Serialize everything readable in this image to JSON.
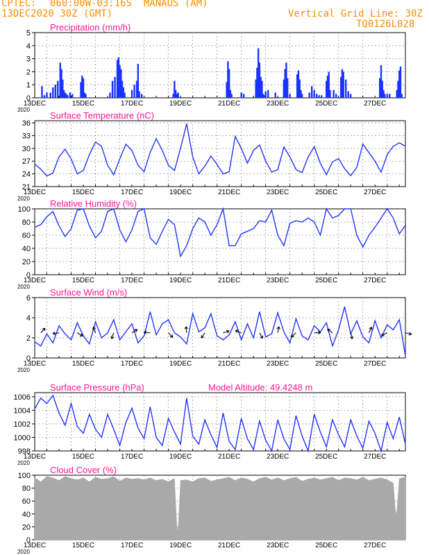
{
  "header": {
    "source": "CPTEC:",
    "location": "060:00W-03:16S  MANAUS (AM)",
    "run": "13DEC2020 30Z (GMT)",
    "grid_note": "Vertical Grid Line: 30Z",
    "code": "TQ0126L028",
    "color": "#ff8c00"
  },
  "colors": {
    "series": "#2233ff",
    "bars": "#1a33ff",
    "title": "#ff1493",
    "cloud": "#a9a9a9",
    "grid": "#999999"
  },
  "x_axis": {
    "tick_labels": [
      "13DEC",
      "15DEC",
      "17DEC",
      "19DEC",
      "21DEC",
      "23DEC",
      "25DEC",
      "27DEC"
    ],
    "tick_days": [
      0,
      2,
      4,
      6,
      8,
      10,
      12,
      14
    ],
    "year_label": "2020",
    "days_span": 15.25
  },
  "chart_data": [
    {
      "type": "bar",
      "title": "Precipitation (mm/h)",
      "ylim": [
        0,
        5
      ],
      "yticks": [
        0,
        1,
        2,
        3,
        4,
        5
      ],
      "x": [
        0.3,
        0.4,
        0.5,
        0.65,
        0.75,
        0.85,
        0.95,
        1.05,
        1.1,
        1.15,
        1.2,
        1.25,
        1.3,
        1.35,
        1.45,
        1.55,
        1.9,
        1.95,
        2.0,
        2.05,
        2.1,
        3.1,
        3.2,
        3.3,
        3.4,
        3.45,
        3.5,
        3.55,
        3.6,
        3.65,
        3.7,
        4.0,
        4.1,
        4.2,
        4.25,
        4.3,
        4.4,
        5.7,
        5.75,
        5.8,
        5.85,
        5.9,
        7.9,
        7.95,
        8.0,
        8.05,
        8.1,
        8.5,
        8.6,
        9.1,
        9.15,
        9.2,
        9.25,
        9.3,
        9.35,
        9.4,
        9.45,
        9.5,
        9.6,
        9.9,
        10.25,
        10.3,
        10.35,
        10.4,
        10.5,
        10.8,
        10.85,
        10.9,
        10.95,
        11.0,
        11.3,
        11.4,
        11.5,
        11.6,
        11.7,
        11.8,
        12.0,
        12.05,
        12.1,
        12.15,
        12.3,
        12.4,
        12.6,
        12.65,
        12.7,
        12.8,
        12.9,
        13.0,
        14.2,
        14.25,
        14.3,
        14.35,
        14.4,
        14.5,
        14.6,
        14.9,
        14.95,
        15.0,
        15.05,
        15.1
      ],
      "values": [
        0.9,
        0.2,
        0.4,
        0.4,
        0.8,
        1.0,
        1.3,
        2.7,
        2.2,
        1.4,
        0.6,
        0.4,
        0.3,
        0.2,
        0.4,
        0.3,
        1.2,
        1.7,
        1.5,
        0.4,
        0.3,
        0.4,
        1.3,
        1.6,
        2.9,
        3.1,
        2.5,
        2.2,
        1.3,
        0.8,
        0.4,
        0.6,
        1.0,
        1.3,
        2.6,
        0.5,
        0.3,
        0.3,
        1.3,
        0.6,
        0.3,
        0.4,
        1.2,
        2.8,
        2.2,
        0.6,
        0.3,
        0.4,
        0.3,
        1.4,
        2.3,
        3.8,
        2.7,
        1.6,
        1.3,
        0.3,
        0.2,
        0.5,
        0.6,
        0.4,
        1.4,
        2.2,
        2.7,
        1.5,
        0.3,
        1.8,
        2.1,
        1.4,
        0.6,
        0.3,
        0.4,
        0.9,
        0.6,
        0.3,
        0.2,
        0.2,
        1.3,
        1.7,
        2.0,
        0.6,
        0.6,
        0.3,
        1.6,
        2.2,
        2.0,
        1.4,
        0.5,
        0.3,
        1.5,
        2.5,
        1.3,
        0.6,
        0.3,
        0.3,
        0.3,
        0.6,
        1.3,
        2.1,
        2.4,
        0.3
      ]
    },
    {
      "type": "line",
      "title": "Surface Temperature (nC)",
      "ylim": [
        21,
        36.5
      ],
      "yticks": [
        21,
        24,
        27,
        30,
        33,
        36
      ],
      "x": [
        0,
        0.25,
        0.5,
        0.75,
        1.0,
        1.25,
        1.5,
        1.75,
        2.0,
        2.25,
        2.5,
        2.75,
        3.0,
        3.25,
        3.5,
        3.75,
        4.0,
        4.25,
        4.5,
        4.75,
        5.0,
        5.25,
        5.5,
        5.75,
        6.0,
        6.25,
        6.5,
        6.75,
        7.0,
        7.25,
        7.5,
        7.75,
        8.0,
        8.25,
        8.5,
        8.75,
        9.0,
        9.25,
        9.5,
        9.75,
        10.0,
        10.25,
        10.5,
        10.75,
        11.0,
        11.25,
        11.5,
        11.75,
        12.0,
        12.25,
        12.5,
        12.75,
        13.0,
        13.25,
        13.5,
        13.75,
        14.0,
        14.25,
        14.5,
        14.75,
        15.0,
        15.25
      ],
      "values": [
        26.3,
        25.1,
        23.5,
        24.2,
        28.0,
        29.8,
        27.5,
        24.0,
        24.8,
        28.5,
        31.5,
        30.5,
        26.0,
        23.8,
        27.5,
        31.0,
        29.5,
        26.0,
        24.5,
        29.0,
        32.3,
        29.5,
        26.0,
        24.8,
        30.0,
        35.8,
        28.0,
        24.0,
        25.8,
        28.2,
        26.2,
        24.0,
        24.5,
        32.8,
        30.0,
        26.5,
        29.5,
        30.8,
        27.0,
        24.4,
        25.0,
        30.3,
        28.0,
        25.0,
        24.3,
        28.0,
        30.4,
        26.5,
        23.8,
        26.8,
        27.6,
        25.2,
        23.6,
        25.5,
        31.0,
        29.0,
        27.0,
        24.4,
        28.5,
        30.5,
        31.3,
        30.5
      ]
    },
    {
      "type": "line",
      "title": "Relative Humidity (%)",
      "ylim": [
        0,
        100
      ],
      "yticks": [
        0,
        20,
        40,
        60,
        80,
        100
      ],
      "x": [
        0,
        0.25,
        0.5,
        0.75,
        1.0,
        1.25,
        1.5,
        1.75,
        2.0,
        2.25,
        2.5,
        2.75,
        3.0,
        3.25,
        3.5,
        3.75,
        4.0,
        4.25,
        4.5,
        4.75,
        5.0,
        5.25,
        5.5,
        5.75,
        6.0,
        6.25,
        6.5,
        6.75,
        7.0,
        7.25,
        7.5,
        7.75,
        8.0,
        8.25,
        8.5,
        8.75,
        9.0,
        9.25,
        9.5,
        9.75,
        10.0,
        10.25,
        10.5,
        10.75,
        11.0,
        11.25,
        11.5,
        11.75,
        12.0,
        12.25,
        12.5,
        12.75,
        13.0,
        13.25,
        13.5,
        13.75,
        14.0,
        14.25,
        14.5,
        14.75,
        15.0,
        15.25
      ],
      "values": [
        72,
        76,
        88,
        96,
        74,
        58,
        70,
        98,
        100,
        74,
        56,
        66,
        96,
        100,
        68,
        50,
        68,
        96,
        100,
        56,
        46,
        66,
        84,
        76,
        28,
        44,
        70,
        86,
        80,
        60,
        76,
        100,
        44,
        44,
        62,
        66,
        70,
        82,
        80,
        98,
        60,
        44,
        78,
        82,
        80,
        86,
        80,
        60,
        100,
        86,
        90,
        100,
        100,
        60,
        42,
        60,
        72,
        86,
        100,
        86,
        62,
        75
      ]
    },
    {
      "type": "line",
      "title": "Surface Wind (m/s)",
      "ylim": [
        0,
        6
      ],
      "yticks": [
        0,
        2,
        4,
        6
      ],
      "x": [
        0,
        0.25,
        0.5,
        0.75,
        1.0,
        1.25,
        1.5,
        1.75,
        2.0,
        2.25,
        2.5,
        2.75,
        3.0,
        3.25,
        3.5,
        3.75,
        4.0,
        4.25,
        4.5,
        4.75,
        5.0,
        5.25,
        5.5,
        5.75,
        6.0,
        6.25,
        6.5,
        6.75,
        7.0,
        7.25,
        7.5,
        7.75,
        8.0,
        8.25,
        8.5,
        8.75,
        9.0,
        9.25,
        9.5,
        9.75,
        10.0,
        10.25,
        10.5,
        10.75,
        11.0,
        11.25,
        11.5,
        11.75,
        12.0,
        12.25,
        12.5,
        12.75,
        13.0,
        13.25,
        13.5,
        13.75,
        14.0,
        14.25,
        14.5,
        14.75,
        15.0,
        15.25
      ],
      "values": [
        1.6,
        1.2,
        2.4,
        1.5,
        3.2,
        2.4,
        1.8,
        3.5,
        2.2,
        1.4,
        3.6,
        2.0,
        2.5,
        3.8,
        1.8,
        2.6,
        3.4,
        1.5,
        2.2,
        4.6,
        2.3,
        3.4,
        3.8,
        2.5,
        2.1,
        1.4,
        4.4,
        2.6,
        3.0,
        4.4,
        2.2,
        1.8,
        2.3,
        3.6,
        1.8,
        3.4,
        2.0,
        4.6,
        2.1,
        2.4,
        4.5,
        2.6,
        1.5,
        3.9,
        2.2,
        1.8,
        3.2,
        2.6,
        3.5,
        1.2,
        2.8,
        5.1,
        2.4,
        3.7,
        2.1,
        1.5,
        3.7,
        2.0,
        3.3,
        2.8,
        3.8,
        0.2
      ]
    },
    {
      "type": "line",
      "title": "Surface Pressure (hPa)",
      "annotation": "Model Altitude: 49.4248 m",
      "ylim": [
        998,
        1006.6
      ],
      "yticks": [
        998,
        1000,
        1002,
        1004,
        1006
      ],
      "x": [
        0,
        0.25,
        0.5,
        0.75,
        1.0,
        1.25,
        1.5,
        1.75,
        2.0,
        2.25,
        2.5,
        2.75,
        3.0,
        3.25,
        3.5,
        3.75,
        4.0,
        4.25,
        4.5,
        4.75,
        5.0,
        5.25,
        5.5,
        5.75,
        6.0,
        6.25,
        6.5,
        6.75,
        7.0,
        7.25,
        7.5,
        7.75,
        8.0,
        8.25,
        8.5,
        8.75,
        9.0,
        9.25,
        9.5,
        9.75,
        10.0,
        10.25,
        10.5,
        10.75,
        11.0,
        11.25,
        11.5,
        11.75,
        12.0,
        12.25,
        12.5,
        12.75,
        13.0,
        13.25,
        13.5,
        13.75,
        14.0,
        14.25,
        14.5,
        14.75,
        15.0,
        15.25
      ],
      "values": [
        1004.2,
        1005.8,
        1005.0,
        1006.2,
        1003.6,
        1001.8,
        1005.0,
        1001.6,
        1000.6,
        1003.4,
        1001.2,
        1000.0,
        1003.4,
        1001.2,
        998.8,
        1002.2,
        1004.3,
        1001.4,
        999.8,
        1004.5,
        1000.0,
        998.8,
        1002.8,
        1000.8,
        999.0,
        1005.8,
        1000.2,
        999.0,
        1002.6,
        1000.4,
        998.5,
        1003.6,
        999.4,
        998.2,
        1002.8,
        999.8,
        998.2,
        1002.4,
        999.6,
        998.0,
        1002.6,
        999.8,
        998.2,
        1003.2,
        1000.2,
        998.0,
        1003.4,
        1000.8,
        998.6,
        1002.6,
        1000.4,
        998.6,
        1002.6,
        1000.2,
        998.4,
        1002.4,
        1000.6,
        998.0,
        1002.2,
        999.8,
        1003.0,
        999.0
      ]
    },
    {
      "type": "area",
      "title": "Cloud Cover (%)",
      "ylim": [
        0,
        100
      ],
      "yticks": [
        0,
        20,
        40,
        60,
        80,
        100
      ],
      "x": [
        0,
        0.25,
        0.5,
        0.75,
        1.0,
        1.25,
        1.5,
        1.75,
        2.0,
        2.25,
        2.5,
        2.75,
        3.0,
        3.25,
        3.5,
        3.75,
        4.0,
        4.25,
        4.5,
        4.75,
        5.0,
        5.25,
        5.5,
        5.75,
        5.85,
        5.9,
        6.0,
        6.25,
        6.5,
        6.75,
        7.0,
        7.25,
        7.5,
        7.75,
        8.0,
        8.25,
        8.5,
        8.75,
        9.0,
        9.25,
        9.5,
        9.75,
        10.0,
        10.25,
        10.5,
        10.75,
        11.0,
        11.25,
        11.5,
        11.75,
        12.0,
        12.25,
        12.5,
        12.75,
        13.0,
        13.25,
        13.5,
        13.75,
        14.0,
        14.25,
        14.5,
        14.75,
        14.85,
        14.9,
        15.0,
        15.25
      ],
      "values": [
        96,
        90,
        98,
        96,
        92,
        98,
        95,
        93,
        96,
        90,
        97,
        94,
        95,
        98,
        91,
        96,
        94,
        95,
        93,
        96,
        92,
        94,
        90,
        95,
        20,
        15,
        92,
        93,
        90,
        95,
        96,
        91,
        93,
        95,
        97,
        92,
        96,
        94,
        90,
        95,
        97,
        93,
        96,
        92,
        95,
        97,
        91,
        94,
        96,
        93,
        95,
        97,
        92,
        96,
        95,
        93,
        97,
        92,
        94,
        96,
        93,
        88,
        40,
        45,
        95,
        97
      ]
    }
  ]
}
